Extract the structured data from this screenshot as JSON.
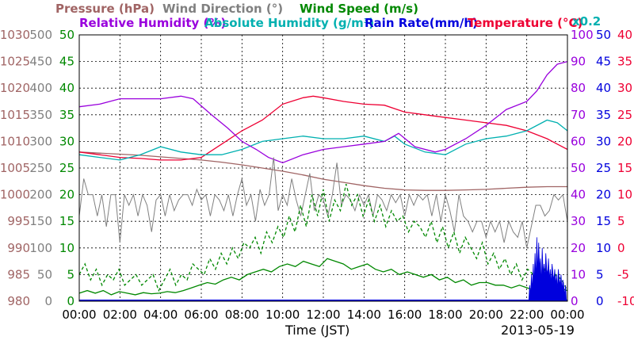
{
  "chart_data": {
    "type": "line",
    "date": "2013-05-19",
    "xlabel": "Time (JST)",
    "x_ticks": [
      "00:00",
      "02:00",
      "04:00",
      "06:00",
      "08:00",
      "10:00",
      "12:00",
      "14:00",
      "16:00",
      "18:00",
      "20:00",
      "22:00",
      "00:00"
    ],
    "grid": true,
    "colors": {
      "pressure": "#a06464",
      "wind_direction": "#808080",
      "wind_speed": "#008800",
      "relative_humidity": "#9900dd",
      "absolute_humidity": "#00b0b0",
      "rain_rate": "#0000dd",
      "temperature": "#ee0033"
    },
    "legend": {
      "row1": [
        {
          "key": "pressure",
          "text": "Pressure (hPa)"
        },
        {
          "key": "wind_direction",
          "text": "Wind Direction (°)"
        },
        {
          "key": "wind_speed",
          "text": "Wind Speed (m/s)"
        }
      ],
      "row2": [
        {
          "key": "relative_humidity",
          "text": "Relative Humidity (%)"
        },
        {
          "key": "absolute_humidity",
          "text": "Absolute Humidity (g/m³)"
        },
        {
          "key": "rain_rate",
          "text": "Rain Rate(mm/h)"
        },
        {
          "key": "temperature",
          "text": "Temperature (°C)"
        }
      ],
      "multiplier": "x0.2"
    },
    "axes": {
      "pressure": {
        "ylim": [
          980,
          1030
        ],
        "ticks": [
          "1030",
          "1025",
          "1020",
          "1015",
          "1010",
          "1005",
          "1000",
          "995",
          "990",
          "985",
          "980"
        ]
      },
      "wind_direction": {
        "ylim": [
          0,
          500
        ],
        "ticks": [
          "500",
          "450",
          "400",
          "350",
          "300",
          "250",
          "200",
          "150",
          "100",
          "50",
          "0"
        ]
      },
      "wind_speed": {
        "ylim": [
          0,
          50
        ],
        "ticks": [
          "50",
          "45",
          "40",
          "35",
          "30",
          "25",
          "20",
          "15",
          "10",
          "5",
          "0"
        ]
      },
      "relative_humidity": {
        "ylim": [
          0,
          100
        ],
        "ticks": [
          "100",
          "90",
          "80",
          "70",
          "60",
          "50",
          "40",
          "30",
          "20",
          "10",
          "0"
        ]
      },
      "rain_rate": {
        "ylim": [
          0,
          50
        ],
        "ticks": [
          "50",
          "45",
          "40",
          "35",
          "30",
          "25",
          "20",
          "15",
          "10",
          "5",
          "0"
        ]
      },
      "temperature": {
        "ylim": [
          -10,
          40
        ],
        "ticks": [
          "40",
          "35",
          "30",
          "25",
          "20",
          "15",
          "10",
          "5",
          "0",
          "-5",
          "-10"
        ]
      }
    },
    "series": [
      {
        "key": "pressure",
        "axis": "pressure",
        "x": [
          0,
          1,
          2,
          3,
          4,
          5,
          6,
          7,
          8,
          9,
          10,
          11,
          12,
          13,
          14,
          15,
          16,
          17,
          18,
          19,
          20,
          21,
          22,
          23,
          24
        ],
        "y": [
          1008,
          1007.8,
          1007.6,
          1007.4,
          1007.1,
          1006.8,
          1006.5,
          1006.1,
          1005.6,
          1005.0,
          1004.4,
          1003.7,
          1002.9,
          1002.3,
          1001.7,
          1001.2,
          1000.9,
          1000.8,
          1000.8,
          1000.9,
          1001.0,
          1001.2,
          1001.4,
          1001.5,
          1001.5
        ]
      },
      {
        "key": "temperature",
        "axis": "temperature",
        "x": [
          0,
          1,
          2,
          3,
          4,
          5,
          6,
          7,
          8,
          9,
          10,
          11,
          11.5,
          12,
          13,
          14,
          15,
          16,
          17,
          18,
          19,
          20,
          21,
          22,
          23,
          23.5,
          24
        ],
        "y": [
          18,
          17.5,
          17,
          16.8,
          16.5,
          16.5,
          17,
          19.5,
          22,
          24,
          27,
          28.2,
          28.5,
          28.2,
          27.5,
          27,
          26.8,
          25.5,
          25,
          24.5,
          24,
          23.5,
          23,
          22,
          20.5,
          19.5,
          18.5
        ]
      },
      {
        "key": "absolute_humidity_x0.2",
        "axis": "wind_speed",
        "x": [
          0,
          1,
          2,
          3,
          4,
          5,
          6,
          7,
          8,
          9,
          10,
          11,
          12,
          13,
          14,
          15,
          15.5,
          16,
          17,
          18,
          19,
          20,
          21,
          22,
          23,
          23.5,
          24
        ],
        "y": [
          27.5,
          27,
          26.5,
          27.5,
          29,
          28,
          27.5,
          27.5,
          28.5,
          30,
          30.5,
          31,
          30.5,
          30.5,
          31,
          30,
          31,
          29.5,
          28,
          27.5,
          29.5,
          30.5,
          31,
          32,
          34,
          33.5,
          32
        ]
      },
      {
        "key": "relative_humidity",
        "axis": "relative_humidity",
        "x": [
          0,
          1,
          2,
          3,
          4,
          5,
          5.6,
          6.5,
          7.3,
          8,
          8.7,
          9.3,
          10,
          11,
          12,
          13,
          14,
          15,
          15.7,
          16.5,
          17.5,
          18,
          19,
          20,
          21,
          22,
          22.5,
          23,
          23.5,
          24
        ],
        "y": [
          73,
          74,
          76,
          76,
          76,
          77,
          76,
          70,
          65,
          60,
          57,
          54,
          52,
          55,
          57,
          58,
          59,
          60,
          63,
          58,
          56,
          57,
          61,
          66,
          72,
          75,
          79,
          85,
          89,
          90
        ]
      },
      {
        "key": "wind_direction",
        "axis": "wind_direction",
        "x_range": [
          0,
          24
        ],
        "y": [
          160,
          230,
          200,
          200,
          160,
          200,
          140,
          200,
          200,
          110,
          200,
          180,
          200,
          160,
          200,
          180,
          130,
          190,
          200,
          160,
          200,
          170,
          190,
          200,
          200,
          180,
          210,
          190,
          200,
          160,
          200,
          190,
          170,
          200,
          160,
          200,
          230,
          180,
          200,
          150,
          210,
          180,
          200,
          270,
          170,
          200,
          180,
          230,
          190,
          160,
          200,
          240,
          170,
          200,
          190,
          160,
          200,
          260,
          180,
          200,
          190,
          170,
          200,
          180,
          200,
          160,
          200,
          190,
          170,
          200,
          185,
          200,
          160,
          200,
          180,
          200,
          190,
          200,
          160,
          200,
          150,
          200,
          170,
          130,
          200,
          160,
          150,
          130,
          150,
          150,
          120,
          150,
          130,
          150,
          110,
          150,
          130,
          120,
          150,
          100,
          140,
          180,
          180,
          160,
          170,
          200,
          190,
          200,
          150
        ]
      },
      {
        "key": "wind_speed_max",
        "axis": "wind_speed",
        "x_range": [
          0,
          24
        ],
        "y": [
          5,
          7,
          4,
          6,
          3,
          5,
          4,
          6,
          3,
          4,
          5,
          3,
          4,
          5,
          2,
          4,
          6,
          3,
          5,
          4,
          7,
          6,
          5,
          8,
          6,
          9,
          7,
          10,
          8,
          11,
          10,
          12,
          9,
          13,
          11,
          14,
          12,
          16,
          13,
          18,
          14,
          20,
          16,
          21,
          15,
          19,
          17,
          22,
          18,
          20,
          16,
          19,
          15,
          18,
          14,
          17,
          15,
          16,
          13,
          15,
          14,
          12,
          15,
          11,
          14,
          10,
          13,
          9,
          12,
          10,
          8,
          11,
          7,
          9,
          6,
          8,
          5,
          7,
          4,
          6,
          5,
          4,
          6,
          3,
          5,
          4,
          2
        ]
      },
      {
        "key": "wind_speed_avg",
        "axis": "wind_speed",
        "x_range": [
          0,
          24
        ],
        "y": [
          1.5,
          2,
          1.5,
          2,
          1.2,
          1.8,
          1.5,
          1.2,
          1.6,
          1.4,
          1.5,
          1.8,
          1.6,
          2,
          2.5,
          3,
          3.5,
          3.2,
          4,
          4.5,
          4,
          5,
          5.5,
          6,
          5.5,
          6.5,
          7,
          6.5,
          7.5,
          7,
          6.5,
          8,
          7.5,
          7,
          6,
          6.5,
          7,
          6,
          5.5,
          6,
          5,
          5.5,
          5,
          4.5,
          5,
          4,
          4.5,
          3.5,
          4,
          3,
          3.5,
          3.5,
          3,
          3,
          2.5,
          3,
          2.5,
          2,
          2.5,
          2,
          2.5,
          2
        ]
      },
      {
        "key": "rain_rate",
        "axis": "rain_rate",
        "x_range": [
          22.1,
          23.95
        ],
        "y": [
          0,
          3,
          1,
          5,
          2,
          7,
          3,
          9,
          4,
          12,
          5,
          11,
          6,
          8,
          3,
          10,
          5,
          7,
          4,
          9,
          6,
          5,
          8,
          4,
          6,
          3,
          7,
          5,
          4,
          6,
          3,
          5,
          2,
          6,
          4,
          3,
          5,
          2,
          4,
          3,
          1,
          3,
          0
        ]
      }
    ]
  }
}
